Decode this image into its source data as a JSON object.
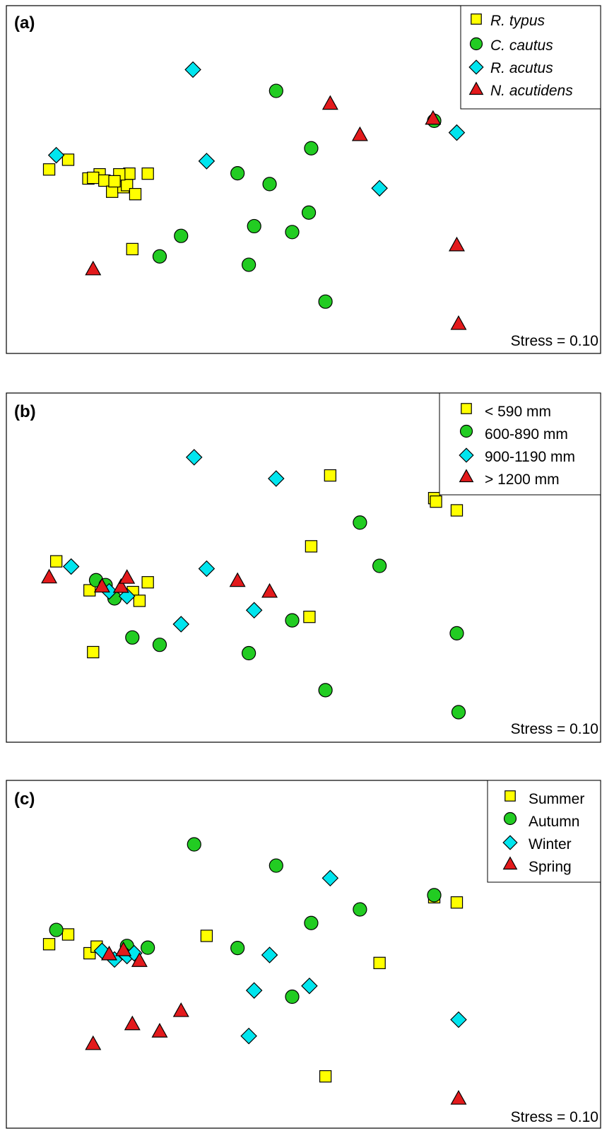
{
  "colors": {
    "square": "#FFFF00",
    "circle": "#22CC22",
    "diamond": "#00E5EE",
    "triangle": "#E31A1C"
  },
  "chart_data": [
    {
      "type": "scatter",
      "panel_label": "(a)",
      "title": "",
      "xlabel": "",
      "ylabel": "",
      "xlim": [
        0,
        100
      ],
      "ylim": [
        0,
        100
      ],
      "grid": false,
      "legend_position": "top-right",
      "legend_italic": true,
      "annotation": "Stress = 0.10",
      "series": [
        {
          "name": "R. typus",
          "marker": "square",
          "color": "#FFFF00",
          "x": [
            7.2,
            10.4,
            13.8,
            15.7,
            14.6,
            16.5,
            17.8,
            19.7,
            20.3,
            20.7,
            19.0,
            18.2,
            21.7,
            23.8,
            21.2
          ],
          "y": [
            52.9,
            55.7,
            50.3,
            51.5,
            50.5,
            49.7,
            46.5,
            47.8,
            48.4,
            51.7,
            51.5,
            49.5,
            45.8,
            51.7,
            30.0
          ]
        },
        {
          "name": "C. cautus",
          "marker": "circle",
          "color": "#22CC22",
          "x": [
            45.4,
            51.3,
            38.9,
            44.3,
            50.9,
            29.4,
            25.8,
            41.7,
            48.1,
            40.8,
            53.7,
            72.0
          ],
          "y": [
            75.5,
            59.0,
            51.8,
            48.7,
            40.5,
            33.8,
            27.9,
            36.6,
            34.9,
            25.5,
            14.9,
            66.9
          ]
        },
        {
          "name": "R. acutus",
          "marker": "diamond",
          "color": "#00E5EE",
          "x": [
            8.4,
            31.4,
            33.7,
            62.8,
            75.8
          ],
          "y": [
            57.0,
            81.6,
            55.3,
            47.5,
            63.5
          ]
        },
        {
          "name": "N. acutidens",
          "marker": "triangle",
          "color": "#E31A1C",
          "x": [
            54.5,
            59.5,
            71.8,
            14.6,
            75.8,
            76.1
          ],
          "y": [
            71.9,
            62.9,
            67.6,
            24.3,
            31.2,
            8.6
          ]
        }
      ]
    },
    {
      "type": "scatter",
      "panel_label": "(b)",
      "title": "",
      "xlabel": "",
      "ylabel": "",
      "xlim": [
        0,
        100
      ],
      "ylim": [
        0,
        100
      ],
      "grid": false,
      "legend_position": "top-right",
      "legend_italic": false,
      "annotation": "Stress = 0.10",
      "series": [
        {
          "name": "< 590 mm",
          "marker": "square",
          "color": "#FFFF00",
          "x": [
            8.4,
            14.0,
            21.3,
            23.8,
            22.4,
            54.5,
            51.3,
            72.0,
            72.3,
            75.8,
            51.0,
            14.6
          ],
          "y": [
            51.8,
            43.5,
            43.0,
            45.8,
            40.5,
            76.4,
            56.1,
            69.9,
            68.9,
            66.4,
            35.9,
            25.8
          ]
        },
        {
          "name": "600-890 mm",
          "marker": "circle",
          "color": "#22CC22",
          "x": [
            15.1,
            16.7,
            18.2,
            21.2,
            25.8,
            40.8,
            48.1,
            59.5,
            62.8,
            53.7,
            75.8,
            76.1
          ],
          "y": [
            46.4,
            45.0,
            41.2,
            30.0,
            27.9,
            25.5,
            34.9,
            62.9,
            50.5,
            14.9,
            31.2,
            8.6
          ]
        },
        {
          "name": "900-1190 mm",
          "marker": "diamond",
          "color": "#00E5EE",
          "x": [
            10.9,
            31.6,
            45.4,
            33.7,
            29.4,
            17.3,
            20.3,
            41.7
          ],
          "y": [
            50.3,
            81.6,
            75.5,
            49.7,
            33.8,
            43.2,
            41.8,
            37.8
          ]
        },
        {
          "name": "> 1200 mm",
          "marker": "triangle",
          "color": "#E31A1C",
          "x": [
            7.2,
            16.1,
            19.3,
            20.3,
            38.9,
            44.3
          ],
          "y": [
            47.3,
            44.7,
            44.6,
            47.2,
            46.3,
            43.2
          ]
        }
      ]
    },
    {
      "type": "scatter",
      "panel_label": "(c)",
      "title": "",
      "xlabel": "",
      "ylabel": "",
      "xlim": [
        0,
        100
      ],
      "ylim": [
        0,
        100
      ],
      "grid": false,
      "legend_position": "top-right",
      "legend_italic": false,
      "annotation": "Stress = 0.10",
      "series": [
        {
          "name": "Summer",
          "marker": "square",
          "color": "#FFFF00",
          "x": [
            7.2,
            10.4,
            14.0,
            15.2,
            33.7,
            62.8,
            72.0,
            75.8,
            53.7
          ],
          "y": [
            52.9,
            55.7,
            50.3,
            52.2,
            55.3,
            47.5,
            66.4,
            64.9,
            14.9
          ]
        },
        {
          "name": "Autumn",
          "marker": "circle",
          "color": "#22CC22",
          "x": [
            8.4,
            20.3,
            23.8,
            31.6,
            45.4,
            51.3,
            59.5,
            72.0,
            38.9,
            48.1
          ],
          "y": [
            57.0,
            52.4,
            51.9,
            81.6,
            75.5,
            59.0,
            62.9,
            67.0,
            51.8,
            37.8
          ]
        },
        {
          "name": "Winter",
          "marker": "diamond",
          "color": "#00E5EE",
          "x": [
            16.1,
            18.2,
            20.3,
            21.5,
            44.3,
            41.7,
            51.0,
            40.8,
            54.5,
            76.1
          ],
          "y": [
            51.0,
            48.5,
            49.5,
            50.3,
            49.8,
            39.6,
            40.9,
            26.5,
            71.9,
            31.2
          ]
        },
        {
          "name": "Spring",
          "marker": "triangle",
          "color": "#E31A1C",
          "x": [
            17.3,
            19.7,
            22.4,
            14.6,
            21.2,
            25.8,
            29.4,
            76.1
          ],
          "y": [
            50.1,
            51.3,
            48.2,
            24.3,
            30.0,
            27.9,
            33.8,
            8.6
          ]
        }
      ]
    }
  ]
}
